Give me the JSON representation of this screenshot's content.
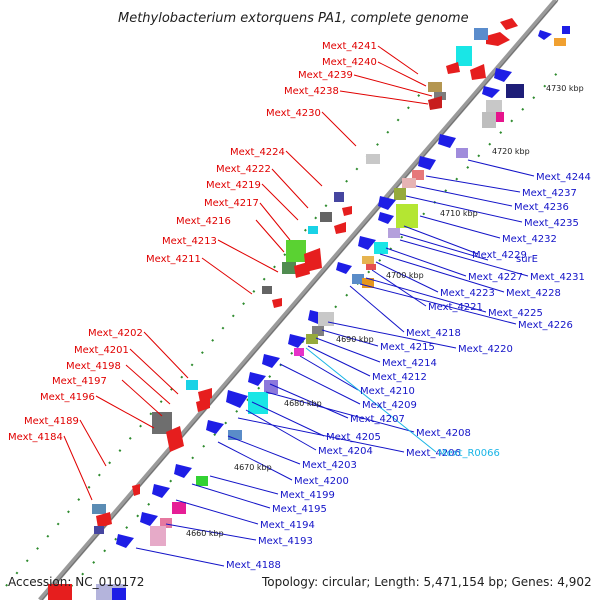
{
  "title": "Methylobacterium extorquens PA1, complete genome",
  "footer": {
    "accession": "Accession: NC_010172",
    "topology": "Topology: circular; Length: 5,471,154 bp; Genes: 4,902"
  },
  "kbp_labels": [
    "4730 kbp",
    "4720 kbp",
    "4710 kbp",
    "4700 kbp",
    "4690 kbp",
    "4680 kbp",
    "4670 kbp",
    "4660 kbp"
  ],
  "genes_left": [
    "Mext_4241",
    "Mext_4240",
    "Mext_4239",
    "Mext_4238",
    "Mext_4230",
    "Mext_4224",
    "Mext_4222",
    "Mext_4219",
    "Mext_4217",
    "Mext_4216",
    "Mext_4213",
    "Mext_4211",
    "Mext_4202",
    "Mext_4201",
    "Mext_4198",
    "Mext_4197",
    "Mext_4196",
    "Mext_4189",
    "Mext_4184"
  ],
  "genes_right": [
    "Mext_4244",
    "Mext_4237",
    "Mext_4236",
    "Mext_4235",
    "Mext_4232",
    "Mext_4229",
    "surE",
    "Mext_4231",
    "Mext_4227",
    "Mext_4228",
    "Mext_4223",
    "Mext_4221",
    "Mext_4225",
    "Mext_4226",
    "Mext_4218",
    "Mext_4220",
    "Mext_4215",
    "Mext_4214",
    "Mext_4212",
    "Mext_4210",
    "Mext_4209",
    "Mext_4207",
    "Mext_4208",
    "Mext_4205",
    "Mext_4204",
    "Mext_4206",
    "Mext_R0066",
    "Mext_4203",
    "Mext_4200",
    "Mext_4199",
    "Mext_4195",
    "Mext_4194",
    "Mext_4193",
    "Mext_4188"
  ]
}
